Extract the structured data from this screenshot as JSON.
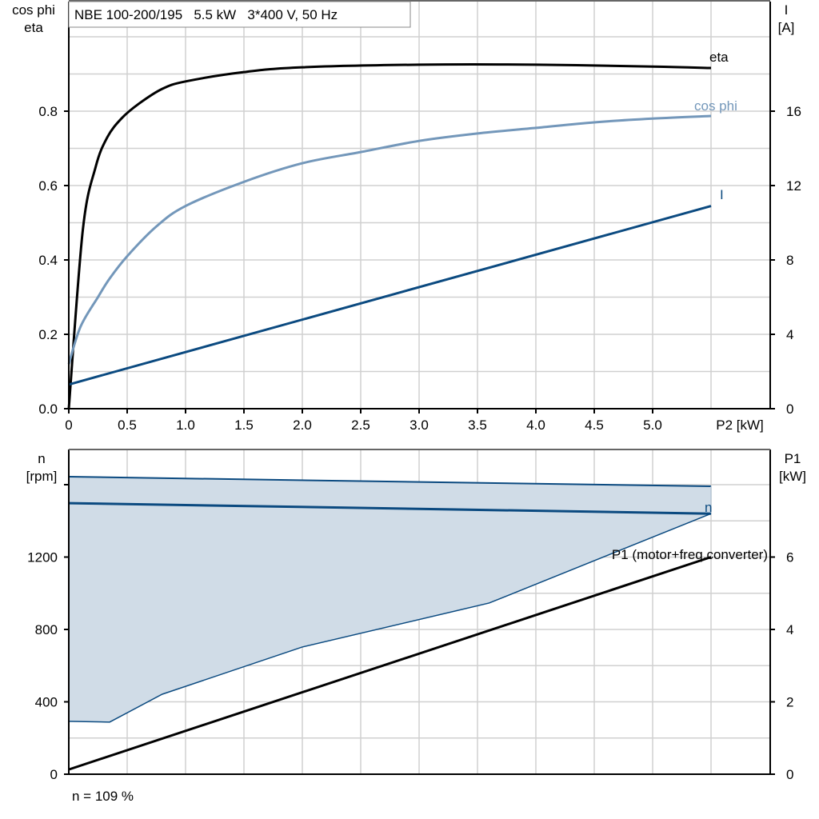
{
  "chart_data": [
    {
      "type": "line",
      "title": "NBE 100-200/195   5.5 kW   3*400 V, 50 Hz",
      "xlabel": "P2 [kW]",
      "ylabel_left": [
        "cos phi",
        "eta"
      ],
      "ylabel_right": [
        "I",
        "[A]"
      ],
      "xlim": [
        0,
        6
      ],
      "ylim_left": [
        0,
        1.0
      ],
      "ylim_right": [
        0,
        20
      ],
      "x_ticks": [
        "0",
        "0.5",
        "1.0",
        "1.5",
        "2.0",
        "2.5",
        "3.0",
        "3.5",
        "4.0",
        "4.5",
        "5.0"
      ],
      "y_ticks_left": [
        "0.0",
        "0.2",
        "0.4",
        "0.6",
        "0.8"
      ],
      "y_ticks_right": [
        "0",
        "4",
        "8",
        "12",
        "16"
      ],
      "grid": true,
      "series": [
        {
          "name": "eta",
          "axis": "left",
          "color": "#000000",
          "x": [
            0,
            0.12,
            0.23,
            0.33,
            0.45,
            0.6,
            0.8,
            1.0,
            1.5,
            2.0,
            3.0,
            4.0,
            5.0,
            5.5
          ],
          "y": [
            0,
            0.48,
            0.65,
            0.73,
            0.78,
            0.82,
            0.86,
            0.88,
            0.905,
            0.918,
            0.925,
            0.925,
            0.92,
            0.916
          ]
        },
        {
          "name": "cos phi",
          "axis": "left",
          "color": "#7397ba",
          "x": [
            0,
            0.1,
            0.25,
            0.35,
            0.5,
            0.75,
            1.0,
            1.5,
            2.0,
            2.5,
            3.0,
            3.5,
            4.0,
            4.5,
            5.0,
            5.5
          ],
          "y": [
            0.12,
            0.22,
            0.3,
            0.35,
            0.41,
            0.49,
            0.545,
            0.61,
            0.66,
            0.69,
            0.72,
            0.74,
            0.755,
            0.77,
            0.78,
            0.787
          ]
        },
        {
          "name": "I",
          "axis": "right",
          "color": "#0b4a80",
          "x": [
            0,
            5.5
          ],
          "y": [
            1.3,
            10.9
          ]
        }
      ]
    },
    {
      "type": "line",
      "ylabel_left": [
        "n",
        "[rpm]"
      ],
      "ylabel_right": [
        "P1",
        "[kW]"
      ],
      "xlim": [
        0,
        6
      ],
      "ylim_left": [
        0,
        1800
      ],
      "ylim_right": [
        0,
        9
      ],
      "y_ticks_left": [
        "0",
        "400",
        "800",
        "1200"
      ],
      "y_ticks_right": [
        "0",
        "2",
        "4",
        "6"
      ],
      "grid": true,
      "footnote": "n = 109 %",
      "band": {
        "color": "#d0dce7",
        "edge_color": "#0b4a80",
        "upper": {
          "x": [
            0,
            5.5
          ],
          "y": [
            1644,
            1591
          ]
        },
        "lower": {
          "x": [
            0,
            0.35,
            0.8,
            2.0,
            3.6,
            5.5
          ],
          "y": [
            292,
            288,
            442,
            703,
            946,
            1440
          ]
        }
      },
      "series": [
        {
          "name": "n",
          "axis": "left",
          "color": "#0b4a80",
          "x": [
            0,
            5.5
          ],
          "y": [
            1498,
            1440
          ]
        },
        {
          "name": "P1 (motor+freq.converter)",
          "axis": "right",
          "color": "#000000",
          "x": [
            0,
            5.5
          ],
          "y": [
            0.13,
            6.0
          ]
        }
      ]
    }
  ]
}
